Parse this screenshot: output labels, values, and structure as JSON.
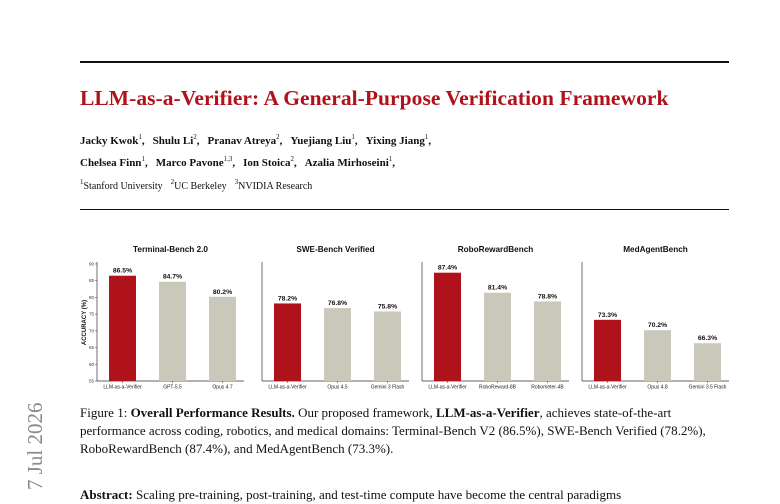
{
  "title": "LLM-as-a-Verifier: A General-Purpose Verification Framework",
  "authors_row_1": [
    {
      "name": "Jacky Kwok",
      "sup": "1"
    },
    {
      "name": "Shulu Li",
      "sup": "2"
    },
    {
      "name": "Pranav Atreya",
      "sup": "2"
    },
    {
      "name": "Yuejiang Liu",
      "sup": "1"
    },
    {
      "name": "Yixing Jiang",
      "sup": "1"
    }
  ],
  "authors_row_2": [
    {
      "name": "Chelsea Finn",
      "sup": "1"
    },
    {
      "name": "Marco Pavone",
      "sup": "1,3"
    },
    {
      "name": "Ion Stoica",
      "sup": "2"
    },
    {
      "name": "Azalia Mirhoseini",
      "sup": "1"
    }
  ],
  "affiliations": [
    {
      "sup": "1",
      "name": "Stanford University"
    },
    {
      "sup": "2",
      "name": "UC Berkeley"
    },
    {
      "sup": "3",
      "name": "NVIDIA Research"
    }
  ],
  "side_stamp": "7 Jul 2026",
  "colors": {
    "title": "#b0121b",
    "highlight_bar": "#b0121b",
    "baseline_bar": "#c9c8bb"
  },
  "chart_data": [
    {
      "type": "bar",
      "title": "Terminal-Bench 2.0",
      "ylabel": "ACCURACY (%)",
      "ylim": [
        55,
        90
      ],
      "yticks": [
        "55",
        "60",
        "65",
        "70",
        "75",
        "80",
        "85",
        "90"
      ],
      "categories": [
        "LLM-as-a-Verifier",
        "GPT-5.5",
        "Opus 4.7"
      ],
      "values": [
        86.5,
        84.7,
        80.2
      ],
      "value_labels": [
        "86.5%",
        "84.7%",
        "80.2%"
      ]
    },
    {
      "type": "bar",
      "title": "SWE-Bench Verified",
      "ylim": [
        55,
        90
      ],
      "categories": [
        "LLM-as-a-Verifier",
        "Opus 4.5",
        "Gemini 3 Flash"
      ],
      "values": [
        78.2,
        76.8,
        75.8
      ],
      "value_labels": [
        "78.2%",
        "76.8%",
        "75.8%"
      ]
    },
    {
      "type": "bar",
      "title": "RoboRewardBench",
      "ylim": [
        55,
        90
      ],
      "categories": [
        "LLM-as-a-Verifier",
        "RoboReward-8B",
        "Robometer-4B"
      ],
      "values": [
        87.4,
        81.4,
        78.8
      ],
      "value_labels": [
        "87.4%",
        "81.4%",
        "78.8%"
      ]
    },
    {
      "type": "bar",
      "title": "MedAgentBench",
      "ylim": [
        55,
        90
      ],
      "categories": [
        "LLM-as-a-Verifier",
        "Opus 4.8",
        "Gemini 3.5 Flash"
      ],
      "values": [
        73.3,
        70.2,
        66.3
      ],
      "value_labels": [
        "73.3%",
        "70.2%",
        "66.3%"
      ]
    }
  ],
  "caption": {
    "label": "Figure 1:",
    "heading": "Overall Performance Results.",
    "text_1": " Our proposed framework, ",
    "framework": "LLM-as-a-Verifier",
    "text_2": ", achieves state-of-the-art performance across coding, robotics, and medical domains: Terminal-Bench V2 (86.5%), SWE-Bench Verified (78.2%), RoboRewardBench (87.4%), and MedAgentBench (73.3%)."
  },
  "abstract": {
    "label": "Abstract:",
    "text": " Scaling pre-training, post-training, and test-time compute have become the central paradigms"
  }
}
